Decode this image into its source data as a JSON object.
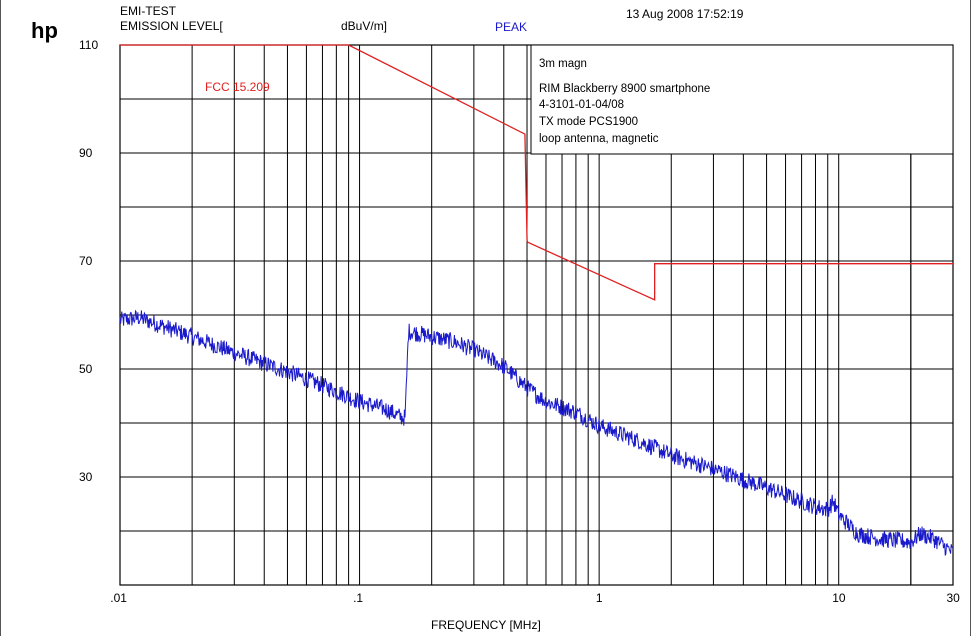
{
  "header": {
    "logo": "hp",
    "title_line1": "EMI-TEST",
    "title_line2": "EMISSION LEVEL[",
    "unit": "dBuV/m]",
    "detector": "PEAK",
    "timestamp": "13 Aug 2008  17:52:19"
  },
  "annotation": {
    "line1": "3m magn",
    "line2": "RIM Blackberry 8900 smartphone",
    "line3": "4-3101-01-04/08",
    "line4": "TX mode PCS1900",
    "line5": "loop antenna, magnetic"
  },
  "chart_data": {
    "type": "line",
    "xscale": "log",
    "xlim": [
      0.01,
      30
    ],
    "ylim": [
      10,
      110
    ],
    "xlabel": "FREQUENCY [MHz]",
    "ylabel": "",
    "x_tick_labels": [
      ".01",
      ".1",
      "1",
      "10",
      "30"
    ],
    "x_ticks": [
      0.01,
      0.1,
      1,
      10,
      30
    ],
    "y_tick_labels": [
      "110",
      "90",
      "70",
      "50",
      "30"
    ],
    "y_ticks": [
      110,
      90,
      70,
      50,
      30
    ],
    "y_grid": [
      110,
      100,
      90,
      80,
      70,
      60,
      50,
      40,
      30,
      20,
      10
    ],
    "grid": true,
    "colors": {
      "limit": "#e02020",
      "measurement": "#1a1acc",
      "peak_label": "#1a1acc"
    },
    "series": [
      {
        "name": "FCC 15.209",
        "color": "#e02020",
        "x": [
          0.01,
          0.09,
          0.49,
          0.49,
          0.5,
          0.502,
          1.705,
          1.705,
          30
        ],
        "y": [
          110,
          110,
          93.5,
          93.5,
          74.0,
          73.5,
          62.8,
          69.5,
          69.5
        ]
      },
      {
        "name": "",
        "color": "#1a1acc",
        "x": [
          0.01,
          0.012,
          0.015,
          0.02,
          0.03,
          0.05,
          0.07,
          0.1,
          0.13,
          0.15,
          0.155,
          0.16,
          0.2,
          0.25,
          0.3,
          0.4,
          0.5,
          0.6,
          0.8,
          1.0,
          1.5,
          2,
          3,
          5,
          7,
          8,
          9,
          9.5,
          10,
          12,
          15,
          20,
          22,
          25,
          30
        ],
        "y": [
          59,
          59.5,
          58,
          56,
          53,
          49.5,
          47,
          44,
          42.5,
          41,
          41,
          57,
          56,
          55,
          53.5,
          50.5,
          46.5,
          44,
          42,
          39.5,
          36.5,
          34,
          31.5,
          28,
          25.5,
          24.5,
          24,
          25.5,
          23,
          19.5,
          18.5,
          18,
          19.5,
          18.5,
          16
        ]
      }
    ]
  }
}
